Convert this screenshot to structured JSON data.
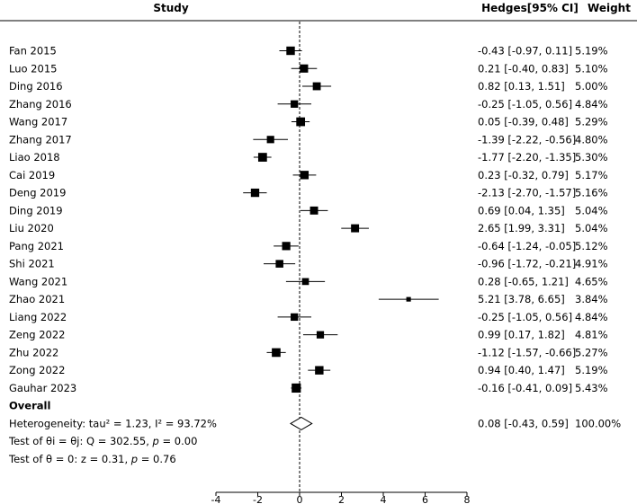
{
  "chart_data": {
    "type": "forest",
    "headers": {
      "study": "Study",
      "effect": "Hedges[95% CI]",
      "weight": "Weight"
    },
    "xlim": [
      -4,
      8
    ],
    "xticks": [
      "-4",
      "-2",
      "0",
      "2",
      "4",
      "6",
      "8"
    ],
    "xtick_values": [
      -4,
      -2,
      0,
      2,
      4,
      6,
      8
    ],
    "reference_line": 0,
    "studies": [
      {
        "name": "Fan 2015",
        "est": -0.43,
        "lo": -0.97,
        "hi": 0.11,
        "ci_text": "-0.43 [-0.97, 0.11]",
        "weight": "5.19%"
      },
      {
        "name": "Luo 2015",
        "est": 0.21,
        "lo": -0.4,
        "hi": 0.83,
        "ci_text": "0.21 [-0.40, 0.83]",
        "weight": "5.10%"
      },
      {
        "name": "Ding 2016",
        "est": 0.82,
        "lo": 0.13,
        "hi": 1.51,
        "ci_text": "0.82 [0.13, 1.51]",
        "weight": "5.00%"
      },
      {
        "name": "Zhang 2016",
        "est": -0.25,
        "lo": -1.05,
        "hi": 0.56,
        "ci_text": "-0.25 [-1.05, 0.56]",
        "weight": "4.84%"
      },
      {
        "name": "Wang 2017",
        "est": 0.05,
        "lo": -0.39,
        "hi": 0.48,
        "ci_text": "0.05 [-0.39, 0.48]",
        "weight": "5.29%"
      },
      {
        "name": "Zhang 2017",
        "est": -1.39,
        "lo": -2.22,
        "hi": -0.56,
        "ci_text": "-1.39 [-2.22, -0.56]",
        "weight": "4.80%"
      },
      {
        "name": "Liao 2018",
        "est": -1.77,
        "lo": -2.2,
        "hi": -1.35,
        "ci_text": "-1.77 [-2.20, -1.35]",
        "weight": "5.30%"
      },
      {
        "name": "Cai 2019",
        "est": 0.23,
        "lo": -0.32,
        "hi": 0.79,
        "ci_text": "0.23 [-0.32, 0.79]",
        "weight": "5.17%"
      },
      {
        "name": "Deng 2019",
        "est": -2.13,
        "lo": -2.7,
        "hi": -1.57,
        "ci_text": "-2.13 [-2.70, -1.57]",
        "weight": "5.16%"
      },
      {
        "name": "Ding 2019",
        "est": 0.69,
        "lo": 0.04,
        "hi": 1.35,
        "ci_text": "0.69 [0.04, 1.35]",
        "weight": "5.04%"
      },
      {
        "name": "Liu 2020",
        "est": 2.65,
        "lo": 1.99,
        "hi": 3.31,
        "ci_text": "2.65 [1.99, 3.31]",
        "weight": "5.04%"
      },
      {
        "name": "Pang 2021",
        "est": -0.64,
        "lo": -1.24,
        "hi": -0.05,
        "ci_text": "-0.64 [-1.24, -0.05]",
        "weight": "5.12%"
      },
      {
        "name": "Shi 2021",
        "est": -0.96,
        "lo": -1.72,
        "hi": -0.21,
        "ci_text": "-0.96 [-1.72, -0.21]",
        "weight": "4.91%"
      },
      {
        "name": "Wang 2021",
        "est": 0.28,
        "lo": -0.65,
        "hi": 1.21,
        "ci_text": "0.28 [-0.65, 1.21]",
        "weight": "4.65%"
      },
      {
        "name": "Zhao 2021",
        "est": 5.21,
        "lo": 3.78,
        "hi": 6.65,
        "ci_text": "5.21 [3.78, 6.65]",
        "weight": "3.84%"
      },
      {
        "name": "Liang 2022",
        "est": -0.25,
        "lo": -1.05,
        "hi": 0.56,
        "ci_text": "-0.25 [-1.05, 0.56]",
        "weight": "4.84%"
      },
      {
        "name": "Zeng 2022",
        "est": 0.99,
        "lo": 0.17,
        "hi": 1.82,
        "ci_text": "0.99 [0.17, 1.82]",
        "weight": "4.81%"
      },
      {
        "name": "Zhu 2022",
        "est": -1.12,
        "lo": -1.57,
        "hi": -0.66,
        "ci_text": "-1.12 [-1.57, -0.66]",
        "weight": "5.27%"
      },
      {
        "name": "Zong 2022",
        "est": 0.94,
        "lo": 0.4,
        "hi": 1.47,
        "ci_text": "0.94 [0.40, 1.47]",
        "weight": "5.19%"
      },
      {
        "name": "Gauhar 2023",
        "est": -0.16,
        "lo": -0.41,
        "hi": 0.09,
        "ci_text": "-0.16 [-0.41, 0.09]",
        "weight": "5.43%"
      }
    ],
    "overall": {
      "label": "Overall",
      "heterogeneity": "Heterogeneity: tau² = 1.23, I² = 93.72%",
      "est": 0.08,
      "lo": -0.43,
      "hi": 0.59,
      "ci_text": "0.08 [-0.43, 0.59]",
      "weight": "100.00%",
      "test_qi": {
        "prefix": "Test of θi = θj: Q = 302.55, ",
        "p_label": "p",
        "suffix": " = 0.00"
      },
      "test_z": {
        "prefix": "Test of θ = 0: z = 0.31, ",
        "p_label": "p",
        "suffix": " = 0.76"
      }
    },
    "colors": {
      "ink": "#000000",
      "background": "#ffffff"
    }
  }
}
